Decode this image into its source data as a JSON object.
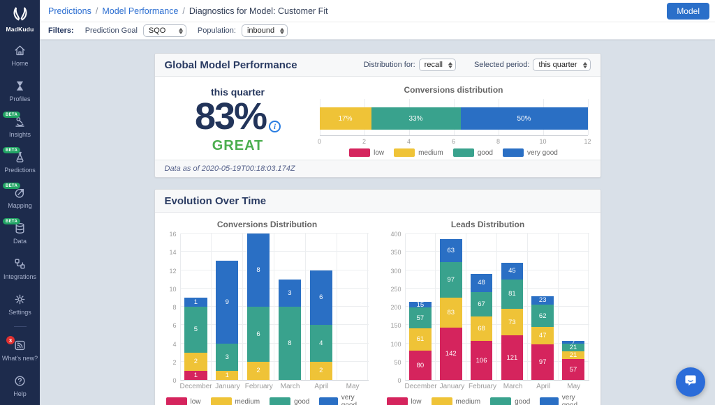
{
  "sidebar": {
    "logo_text": "MadKudu",
    "beta_badge_label": "BETA",
    "items": [
      {
        "label": "Home",
        "icon": "home-icon"
      },
      {
        "label": "Profiles",
        "icon": "profiles-icon"
      },
      {
        "label": "Insights",
        "icon": "insights-icon",
        "beta": true
      },
      {
        "label": "Predictions",
        "icon": "predictions-icon",
        "beta": true
      },
      {
        "label": "Mapping",
        "icon": "mapping-icon",
        "beta": true
      },
      {
        "label": "Data",
        "icon": "data-icon",
        "beta": true
      },
      {
        "label": "Integrations",
        "icon": "integrations-icon"
      },
      {
        "label": "Settings",
        "icon": "settings-icon"
      },
      {
        "divider": true
      },
      {
        "label": "What's new?",
        "icon": "whats-new-icon",
        "badge": "3"
      },
      {
        "label": "Help",
        "icon": "help-icon"
      }
    ]
  },
  "header": {
    "breadcrumb": [
      {
        "label": "Predictions",
        "link": true
      },
      {
        "label": "Model Performance",
        "link": true
      },
      {
        "label": "Diagnostics for Model: Customer Fit",
        "link": false
      }
    ],
    "model_button": "Model"
  },
  "filters": {
    "label": "Filters:",
    "prediction_goal_label": "Prediction Goal",
    "prediction_goal_value": "SQO",
    "population_label": "Population:",
    "population_value": "inbound"
  },
  "global_performance": {
    "title": "Global Model Performance",
    "distribution_for_label": "Distribution for:",
    "distribution_for_value": "recall",
    "selected_period_label": "Selected period:",
    "selected_period_value": "this quarter",
    "period_label": "this quarter",
    "score": "83%",
    "info_icon": "i",
    "rating": "GREAT",
    "data_as_of": "Data as of 2020-05-19T00:18:03.174Z"
  },
  "evolution": {
    "title": "Evolution Over Time"
  },
  "colors": {
    "low": "#D5245D",
    "medium": "#EFC337",
    "good": "#39A28D",
    "very_good": "#2A6FC4",
    "accent_blue": "#2A6FC9",
    "great_green": "#4CAE4F",
    "sidebar_navy": "#1D2B4C",
    "beta_green": "#21A464",
    "alert_red": "#E03131"
  },
  "chart_data": [
    {
      "id": "conversions_distribution_current",
      "type": "bar",
      "orientation": "horizontal",
      "stacked": true,
      "title": "Conversions distribution",
      "xlim": [
        0,
        12
      ],
      "xticks": [
        0,
        2,
        4,
        6,
        8,
        10,
        12
      ],
      "legend_position": "bottom",
      "series": [
        {
          "name": "low",
          "color": "#D5245D",
          "value": 0,
          "label": ""
        },
        {
          "name": "medium",
          "color": "#EFC337",
          "value": 2,
          "label": "17%"
        },
        {
          "name": "good",
          "color": "#39A28D",
          "value": 4,
          "label": "33%"
        },
        {
          "name": "very good",
          "color": "#2A6FC4",
          "value": 6,
          "label": "50%"
        }
      ]
    },
    {
      "id": "conversions_evolution",
      "type": "bar",
      "stacked": true,
      "title": "Conversions Distribution",
      "categories": [
        "December",
        "January",
        "February",
        "March",
        "April",
        "May"
      ],
      "ylim": [
        0,
        16
      ],
      "yticks": [
        0,
        2,
        4,
        6,
        8,
        10,
        12,
        14,
        16
      ],
      "legend_position": "bottom",
      "series": [
        {
          "name": "low",
          "color": "#D5245D",
          "values": [
            1,
            0,
            0,
            0,
            0,
            0
          ]
        },
        {
          "name": "medium",
          "color": "#EFC337",
          "values": [
            2,
            1,
            2,
            0,
            2,
            0
          ]
        },
        {
          "name": "good",
          "color": "#39A28D",
          "values": [
            5,
            3,
            6,
            8,
            4,
            0
          ]
        },
        {
          "name": "very good",
          "color": "#2A6FC4",
          "values": [
            1,
            9,
            8,
            3,
            6,
            0
          ]
        }
      ]
    },
    {
      "id": "leads_evolution",
      "type": "bar",
      "stacked": true,
      "title": "Leads Distribution",
      "categories": [
        "December",
        "January",
        "February",
        "March",
        "April",
        "May"
      ],
      "ylim": [
        0,
        400
      ],
      "yticks": [
        0,
        50,
        100,
        150,
        200,
        250,
        300,
        350,
        400
      ],
      "legend_position": "bottom",
      "series": [
        {
          "name": "low",
          "color": "#D5245D",
          "values": [
            80,
            142,
            106,
            121,
            97,
            57
          ]
        },
        {
          "name": "medium",
          "color": "#EFC337",
          "values": [
            61,
            83,
            68,
            73,
            47,
            21
          ]
        },
        {
          "name": "good",
          "color": "#39A28D",
          "values": [
            57,
            97,
            67,
            81,
            62,
            21
          ]
        },
        {
          "name": "very good",
          "color": "#2A6FC4",
          "values": [
            15,
            63,
            48,
            45,
            23,
            7
          ]
        }
      ]
    }
  ]
}
